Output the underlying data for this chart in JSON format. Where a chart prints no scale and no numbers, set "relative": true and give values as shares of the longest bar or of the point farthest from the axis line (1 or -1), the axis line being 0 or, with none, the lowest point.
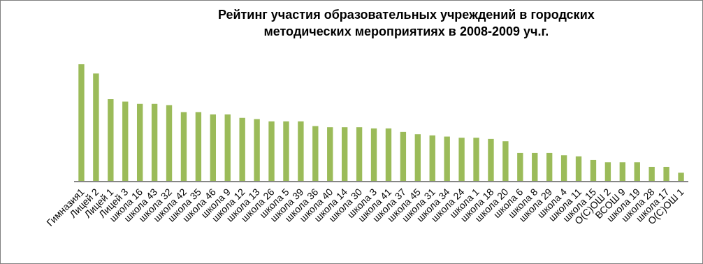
{
  "chart_data": {
    "type": "bar",
    "title": "Рейтинг участия образовательных учреждений в городских методических мероприятиях в 2008-2009 уч.г.",
    "categories": [
      "Гимназия1",
      "Лицей 2",
      "Лицей 1",
      "Лицей 3",
      "школа 16",
      "школа 43",
      "школа 32",
      "школа 42",
      "школа 35",
      "школа 46",
      "школа 9",
      "школа 12",
      "школа 13",
      "школа 26",
      "школа 5",
      "школа 39",
      "школа 36",
      "школа 40",
      "школа 14",
      "школа 30",
      "школа 3",
      "школа 41",
      "школа 37",
      "школа 45",
      "школа 31",
      "школа 34",
      "школа 24",
      "школа 1",
      "школа 18",
      "школа 20",
      "школа 6",
      "школа 8",
      "школа 29",
      "школа 4",
      "школа 11",
      "школа 15",
      "О(С)ОШ 2",
      "ВСОШ 9",
      "школа 19",
      "школа 28",
      "школа 17",
      "О(С)ОШ 1"
    ],
    "values": [
      1,
      0.92,
      0.7,
      0.68,
      0.66,
      0.66,
      0.65,
      0.59,
      0.59,
      0.57,
      0.57,
      0.54,
      0.53,
      0.51,
      0.51,
      0.51,
      0.47,
      0.46,
      0.46,
      0.46,
      0.45,
      0.45,
      0.42,
      0.4,
      0.39,
      0.38,
      0.37,
      0.37,
      0.36,
      0.34,
      0.24,
      0.24,
      0.24,
      0.22,
      0.21,
      0.18,
      0.16,
      0.16,
      0.16,
      0.12,
      0.12,
      0.07
    ],
    "color": "#9bbb59",
    "relative": true,
    "grid": false,
    "legend": false
  }
}
